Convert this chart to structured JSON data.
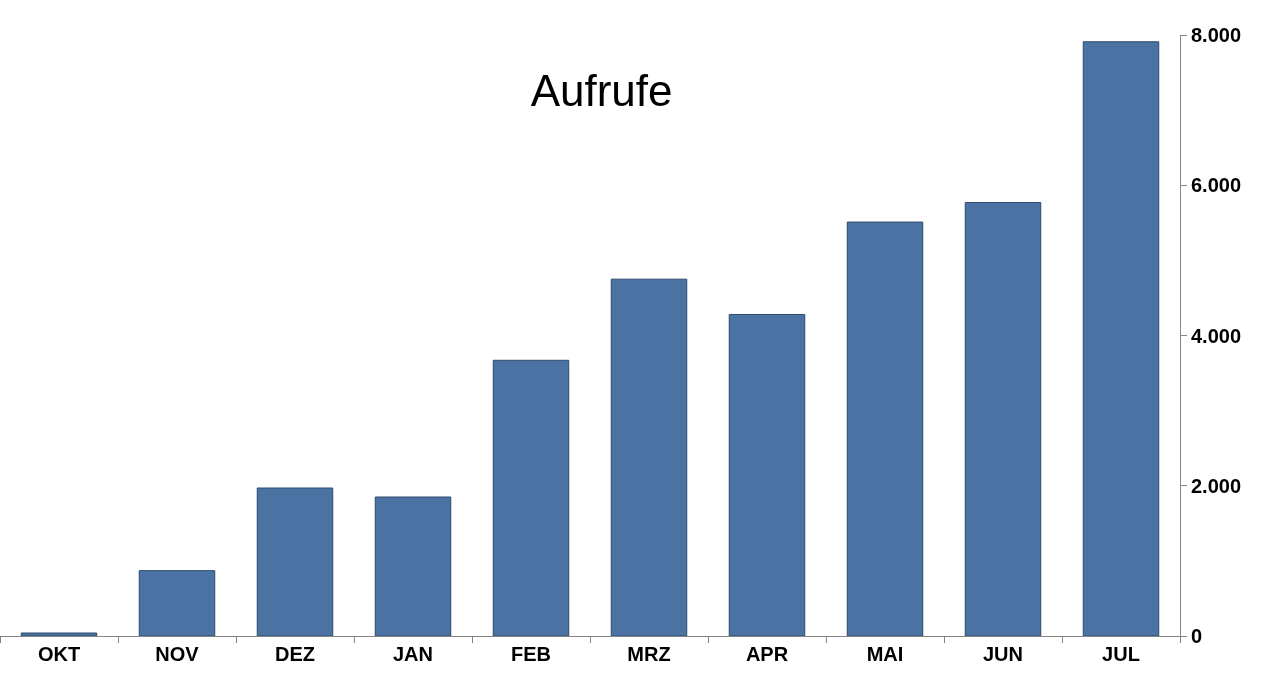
{
  "chart_data": {
    "type": "bar",
    "title": "Aufrufe",
    "categories": [
      "OKT",
      "NOV",
      "DEZ",
      "JAN",
      "FEB",
      "MRZ",
      "APR",
      "MAI",
      "JUN",
      "JUL"
    ],
    "values": [
      40,
      870,
      1970,
      1850,
      3670,
      4750,
      4280,
      5510,
      5770,
      7910
    ],
    "color": "#4a73a4",
    "ylim": [
      0,
      8000
    ],
    "yticks": [
      0,
      {
        "value": 2000,
        "label": "2.000"
      },
      {
        "value": 4000,
        "label": "4.000"
      },
      {
        "value": 6000,
        "label": "6.000"
      },
      {
        "value": 8000,
        "label": "8.000"
      }
    ]
  }
}
